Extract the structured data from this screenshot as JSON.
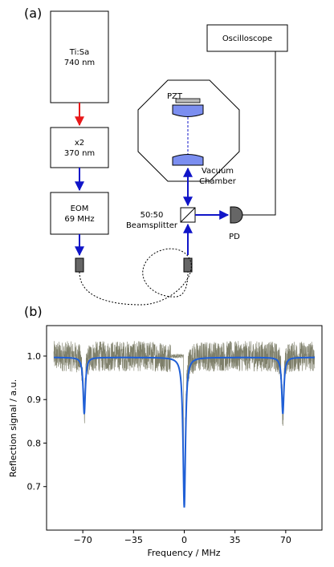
{
  "panels": {
    "a": "(a)",
    "b": "(b)"
  },
  "diagram": {
    "laser": [
      "Ti:Sa",
      "740 nm"
    ],
    "doubler": [
      "x2",
      "370 nm"
    ],
    "eom": [
      "EOM",
      "69 MHz"
    ],
    "oscilloscope": "Oscilloscope",
    "pzt": "PZT",
    "chamber": [
      "Vacuum",
      "Chamber"
    ],
    "beamsplitter": [
      "50:50",
      "Beamsplitter"
    ],
    "pd": "PD",
    "colors": {
      "red_beam": "#e8191a",
      "blue_beam": "#1015c8",
      "mirror": "#7b8ef0",
      "fiber_port": "#666666"
    }
  },
  "chart_data": {
    "type": "line",
    "xlabel": "Frequency / MHz",
    "ylabel": "Reflection signal / a.u.",
    "xlim": [
      -95,
      95
    ],
    "ylim": [
      0.6,
      1.07
    ],
    "xticks": [
      -70,
      -35,
      0,
      35,
      70
    ],
    "yticks": [
      0.7,
      0.8,
      0.9,
      1.0
    ],
    "series": [
      {
        "style": "noisy data",
        "color": "#7e7f6a",
        "baseline": 1.0,
        "noise": 0.035,
        "dips": [
          {
            "x": -69,
            "depth": 0.13
          },
          {
            "x": 0,
            "depth": 0.345
          },
          {
            "x": 68,
            "depth": 0.13
          }
        ]
      },
      {
        "style": "lorentzian fit",
        "color": "#1f5fd6",
        "baseline": 0.997,
        "dips": [
          {
            "x": -69,
            "depth": 0.13,
            "hwhm": 0.9
          },
          {
            "x": 0,
            "depth": 0.345,
            "hwhm": 1.0
          },
          {
            "x": 68,
            "depth": 0.13,
            "hwhm": 0.9
          }
        ]
      }
    ]
  }
}
